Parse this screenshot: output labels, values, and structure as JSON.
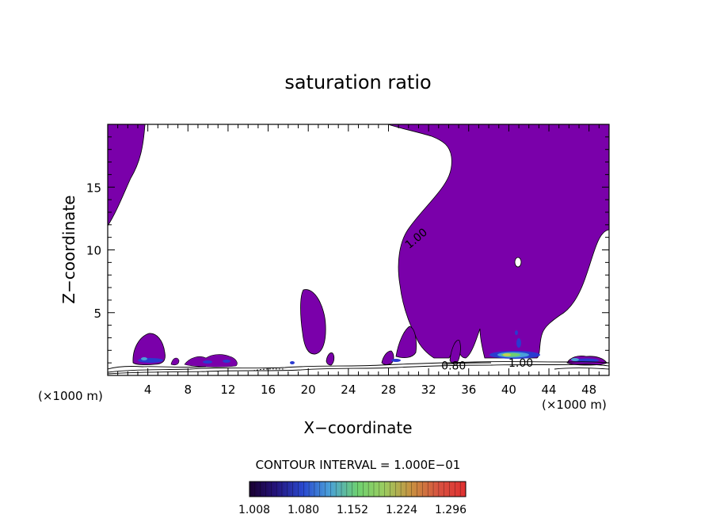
{
  "chart_data": {
    "type": "heatmap",
    "title": "saturation ratio",
    "xlabel": "X−coordinate",
    "ylabel": "Z−coordinate",
    "x_unit_left": "(×1000 m)",
    "x_unit_right": "(×1000 m)",
    "xlim": [
      0,
      50
    ],
    "ylim": [
      0,
      20
    ],
    "x_ticks": [
      4,
      8,
      12,
      16,
      20,
      24,
      28,
      32,
      36,
      40,
      44,
      48
    ],
    "y_ticks": [
      5,
      10,
      15
    ],
    "contour_labels": [
      {
        "text": "1.00",
        "x": 31,
        "z": 11
      },
      {
        "text": "0.80",
        "x": 34.5,
        "z": 0.8
      },
      {
        "text": "1.00",
        "x": 41.2,
        "z": 1.0
      }
    ],
    "contour_interval_text": "CONTOUR INTERVAL = 1.000E−01",
    "colorbar": {
      "tick_labels": [
        "1.008",
        "1.080",
        "1.152",
        "1.224",
        "1.296"
      ],
      "fill_color": "#7a00aa"
    }
  }
}
